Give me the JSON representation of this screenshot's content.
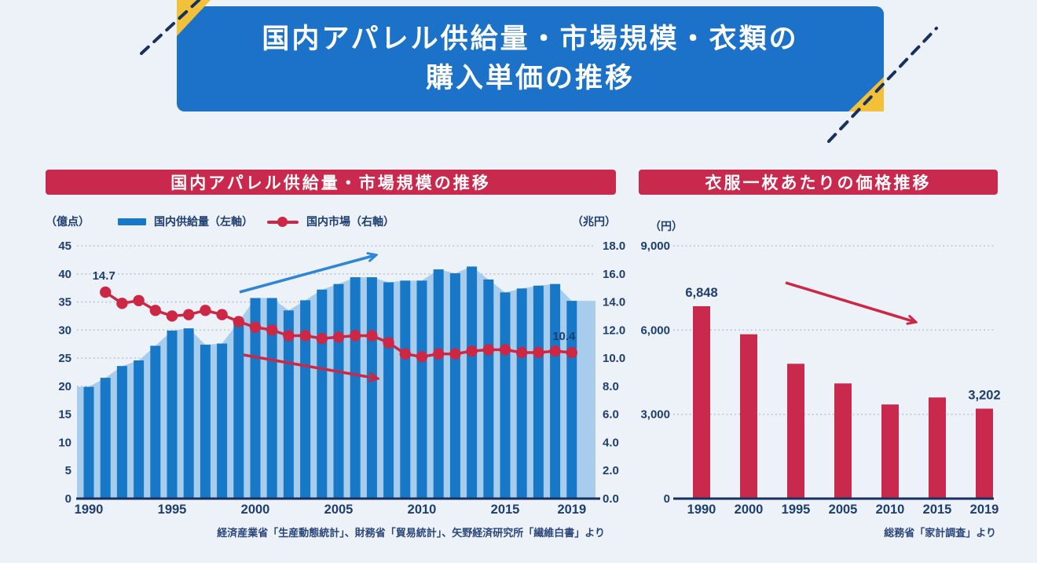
{
  "title_banner": {
    "line1": "国内アパレル供給量・市場規模・衣類の",
    "line2": "購入単価の推移"
  },
  "colors": {
    "background": "#edf1f8",
    "banner_blue": "#1b72c8",
    "accent_yellow": "#f3c139",
    "crimson": "#c8294d",
    "bar_blue": "#1878c8",
    "area_blue": "#a8cdec",
    "navy_text": "#1d3e70",
    "axis_navy": "#16305f",
    "grid": "#b7c3d8",
    "arrow_blue": "#2e86d4",
    "line_red": "#cd2746"
  },
  "chart_data": [
    {
      "type": "bar+line",
      "title": "国内アパレル供給量・市場規模の推移",
      "unit_left": "（億点）",
      "unit_right": "（兆円）",
      "legend": [
        {
          "label": "国内供給量（左軸）",
          "style": "bar"
        },
        {
          "label": "国内市場（右軸）",
          "style": "line"
        }
      ],
      "x": [
        1990,
        1991,
        1992,
        1993,
        1994,
        1995,
        1996,
        1997,
        1998,
        1999,
        2000,
        2001,
        2002,
        2003,
        2004,
        2005,
        2006,
        2007,
        2008,
        2009,
        2010,
        2011,
        2012,
        2013,
        2014,
        2015,
        2016,
        2017,
        2018,
        2019
      ],
      "x_ticks": [
        "1990",
        "1995",
        "2000",
        "2005",
        "2010",
        "2015",
        "2019"
      ],
      "y_left": {
        "label": "（億点）",
        "ticks": [
          "0",
          "5",
          "10",
          "15",
          "20",
          "25",
          "30",
          "35",
          "40",
          "45"
        ],
        "max": 45
      },
      "y_right": {
        "label": "（兆円）",
        "ticks": [
          "0.0",
          "2.0",
          "4.0",
          "6.0",
          "8.0",
          "10.0",
          "12.0",
          "14.0",
          "16.0",
          "18.0"
        ],
        "max": 18
      },
      "series": [
        {
          "name": "国内供給量（左軸）",
          "type": "bar",
          "axis": "left",
          "values": [
            19.9,
            21.5,
            23.6,
            24.6,
            27.2,
            29.9,
            30.3,
            27.4,
            27.6,
            31.5,
            35.7,
            35.7,
            33.5,
            35.3,
            37.2,
            38.2,
            39.4,
            39.4,
            38.5,
            38.8,
            38.8,
            40.8,
            40.1,
            41.3,
            39.0,
            36.7,
            37.4,
            37.9,
            38.2,
            35.2
          ]
        },
        {
          "name": "国内市場（右軸）",
          "type": "line",
          "axis": "right",
          "values": [
            null,
            14.7,
            13.9,
            14.1,
            13.4,
            13.0,
            13.1,
            13.4,
            13.1,
            12.6,
            12.2,
            12.0,
            11.6,
            11.6,
            11.4,
            11.5,
            11.6,
            11.6,
            11.1,
            10.3,
            10.1,
            10.3,
            10.3,
            10.5,
            10.6,
            10.6,
            10.4,
            10.4,
            10.5,
            10.4
          ]
        }
      ],
      "annotations": [
        {
          "text": "14.7",
          "year": 1991
        },
        {
          "text": "10.4",
          "year": 2019
        }
      ],
      "trend_arrows": [
        {
          "series": "supply",
          "direction": "up",
          "color_key": "arrow_blue"
        },
        {
          "series": "market",
          "direction": "down",
          "color_key": "line_red"
        }
      ],
      "source": "経済産業省「生産動態統計」、財務省「貿易統計」、矢野経済研究所「繊維白書」より"
    },
    {
      "type": "bar",
      "title": "衣服一枚あたりの価格推移",
      "unit": "（円）",
      "categories": [
        "1990",
        "2000",
        "1995",
        "2005",
        "2010",
        "2015",
        "2019"
      ],
      "values": [
        6848,
        5850,
        4800,
        4100,
        3350,
        3600,
        3202
      ],
      "bar_labels": [
        {
          "index": 0,
          "text": "6,848"
        },
        {
          "index": 6,
          "text": "3,202"
        }
      ],
      "y_ticks": [
        "0",
        "3,000",
        "6,000",
        "9,000"
      ],
      "ylim": [
        0,
        9000
      ],
      "trend_arrows": [
        {
          "series": "price",
          "direction": "down",
          "color_key": "line_red"
        }
      ],
      "source": "総務省「家計調査」より"
    }
  ]
}
